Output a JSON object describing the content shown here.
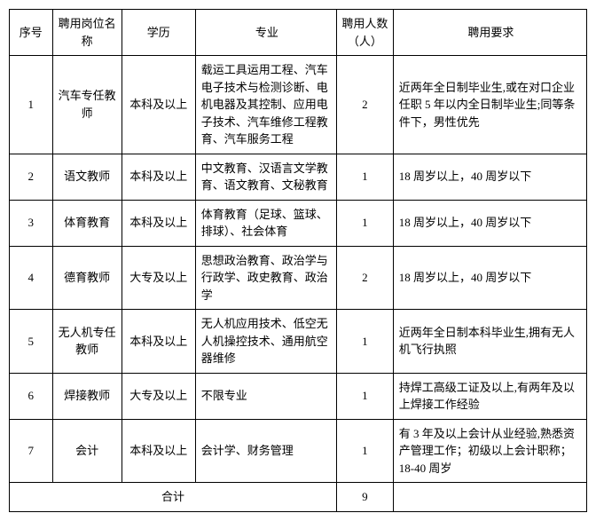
{
  "headers": {
    "seq": "序号",
    "position": "聘用岗位名称",
    "education": "学历",
    "major": "专业",
    "count": "聘用人数（人）",
    "requirement": "聘用要求"
  },
  "rows": [
    {
      "seq": "1",
      "position": "汽车专任教师",
      "education": "本科及以上",
      "major": "载运工具运用工程、汽车电子技术与检测诊断、电机电器及其控制、应用电子技术、汽车维修工程教育、汽车服务工程",
      "count": "2",
      "requirement": "近两年全日制毕业生,或在对口企业任职 5 年以内全日制毕业生;同等条件下，男性优先"
    },
    {
      "seq": "2",
      "position": "语文教师",
      "education": "本科及以上",
      "major": "中文教育、汉语言文学教育、语文教育、文秘教育",
      "count": "1",
      "requirement": "18 周岁以上，40 周岁以下"
    },
    {
      "seq": "3",
      "position": "体育教育",
      "education": "本科及以上",
      "major": "体育教育（足球、篮球、排球）、社会体育",
      "count": "1",
      "requirement": "18 周岁以上，40 周岁以下"
    },
    {
      "seq": "4",
      "position": "德育教师",
      "education": "大专及以上",
      "major": "思想政治教育、政治学与行政学、政史教育、政治学",
      "count": "2",
      "requirement": "18 周岁以上，40 周岁以下"
    },
    {
      "seq": "5",
      "position": "无人机专任教师",
      "education": "本科及以上",
      "major": "无人机应用技术、低空无人机操控技术、通用航空器维修",
      "count": "1",
      "requirement": "近两年全日制本科毕业生,拥有无人机飞行执照"
    },
    {
      "seq": "6",
      "position": "焊接教师",
      "education": "大专及以上",
      "major": "不限专业",
      "count": "1",
      "requirement": "持焊工高级工证及以上,有两年及以上焊接工作经验"
    },
    {
      "seq": "7",
      "position": "会计",
      "education": "本科及以上",
      "major": "会计学、财务管理",
      "count": "1",
      "requirement": "有 3 年及以上会计从业经验,熟悉资产管理工作；初级以上会计职称；18-40 周岁"
    }
  ],
  "footer": {
    "total_label": "合计",
    "total_count": "9"
  }
}
